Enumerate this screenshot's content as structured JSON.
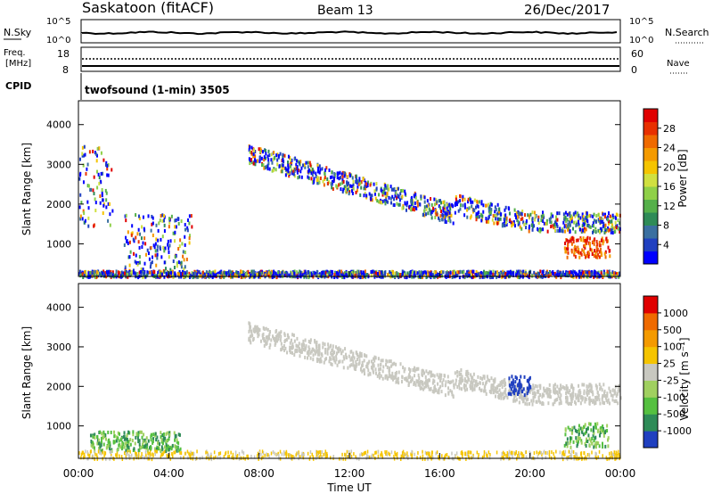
{
  "header": {
    "station": "Saskatoon (fitACF)",
    "beam": "Beam 13",
    "date": "26/Dec/2017"
  },
  "top_panels": {
    "nsky": {
      "label": "N.Sky",
      "left_ticks": [
        "10^5",
        "10^0"
      ],
      "right_label": "N.Search",
      "right_ticks": [
        "10^5",
        "10^0"
      ]
    },
    "freq": {
      "label_line1": "Freq.",
      "label_line2": "[MHz]",
      "left_ticks": [
        "18",
        "8"
      ],
      "right_label": "Nave",
      "right_ticks": [
        "60",
        "0"
      ]
    },
    "cpid": {
      "label": "CPID",
      "text": "twofsound (1-min) 3505"
    }
  },
  "chart_data": [
    {
      "type": "heatmap",
      "title": "",
      "ylabel": "Slant Range [km]",
      "y_ticks": [
        "4000",
        "3000",
        "2000",
        "1000"
      ],
      "ylim": [
        180,
        4600
      ],
      "xlim_hours": [
        0,
        24
      ],
      "colorbar": {
        "label": "Power [dB]",
        "ticks": [
          "28",
          "24",
          "20",
          "16",
          "12",
          "8",
          "4"
        ],
        "colors": [
          "#0000ff",
          "#2040c0",
          "#3a6fa0",
          "#2e8b57",
          "#55b04a",
          "#8fd048",
          "#d0e040",
          "#f5c400",
          "#f49a00",
          "#ef6a00",
          "#e83000",
          "#e00000"
        ]
      },
      "features": [
        {
          "name": "morning echoes",
          "t_start": 0.0,
          "t_end": 1.5,
          "range_start": 1400,
          "range_end": 3500
        },
        {
          "name": "dawn band",
          "t_start": 2.0,
          "t_end": 5.0,
          "range_start": 300,
          "range_end": 1800
        },
        {
          "name": "main descending band",
          "t_start": 7.5,
          "t_end": 24.0,
          "range_start": 900,
          "range_end": 3300
        },
        {
          "name": "evening high power",
          "t_start": 21.5,
          "t_end": 23.5,
          "range_start": 700,
          "range_end": 1200
        },
        {
          "name": "near-range clutter",
          "t_start": 0.0,
          "t_end": 24.0,
          "range_start": 200,
          "range_end": 350
        }
      ]
    },
    {
      "type": "heatmap",
      "title": "",
      "ylabel": "Slant Range [km]",
      "y_ticks": [
        "4000",
        "3000",
        "2000",
        "1000"
      ],
      "ylim": [
        180,
        4600
      ],
      "xlim_hours": [
        0,
        24
      ],
      "xlabel": "Time UT",
      "x_ticks": [
        "00:00",
        "04:00",
        "08:00",
        "12:00",
        "16:00",
        "20:00",
        "00:00"
      ],
      "colorbar": {
        "label": "Velocity [m s⁻¹]",
        "ticks": [
          "1000",
          "500",
          "100",
          "25",
          "-25",
          "-100",
          "-500",
          "-1000"
        ],
        "colors": [
          "#2040c0",
          "#2e8b57",
          "#55c040",
          "#a0d060",
          "#c8c8c0",
          "#f5c400",
          "#f49a00",
          "#ef6a00",
          "#e00000"
        ]
      },
      "features": [
        {
          "name": "main band (ground scatter grey)",
          "t_start": 7.5,
          "t_end": 24.0,
          "range_start": 1200,
          "range_end": 3400
        },
        {
          "name": "dawn green echoes",
          "t_start": 0.5,
          "t_end": 4.5,
          "range_start": 400,
          "range_end": 900
        },
        {
          "name": "evening green echoes",
          "t_start": 21.5,
          "t_end": 23.5,
          "range_start": 500,
          "range_end": 1100
        },
        {
          "name": "evening blue patch",
          "t_start": 19.0,
          "t_end": 20.0,
          "range_start": 1800,
          "range_end": 2300
        }
      ]
    }
  ]
}
